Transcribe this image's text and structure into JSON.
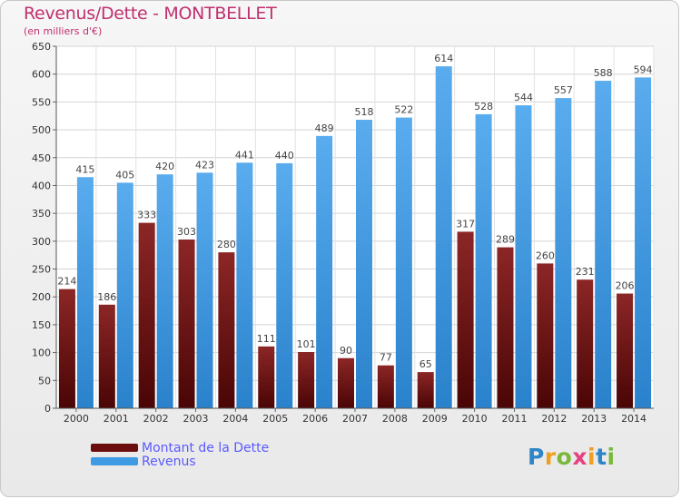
{
  "header": {
    "title": "Revenus/Dette - MONTBELLET",
    "subtitle": "(en milliers d'€)"
  },
  "legend": {
    "items": [
      {
        "label": "Montant de la Dette",
        "color": "#6b0d0d"
      },
      {
        "label": "Revenus",
        "color": "#3f9be3"
      }
    ]
  },
  "logo": {
    "letters": [
      "P",
      "r",
      "o",
      "x",
      "i",
      "t",
      "i"
    ],
    "colors": [
      "#2e86c8",
      "#f0a020",
      "#7ab83c",
      "#e84080",
      "#f0a020",
      "#2e86c8",
      "#7ab83c"
    ]
  },
  "chart_data": {
    "type": "bar",
    "categories": [
      "2000",
      "2001",
      "2002",
      "2003",
      "2004",
      "2005",
      "2006",
      "2007",
      "2008",
      "2009",
      "2010",
      "2011",
      "2012",
      "2013",
      "2014"
    ],
    "series": [
      {
        "name": "Montant de la Dette",
        "values": [
          214,
          186,
          333,
          303,
          280,
          111,
          101,
          90,
          77,
          65,
          317,
          289,
          260,
          231,
          206
        ],
        "color": "#6b0d0d"
      },
      {
        "name": "Revenus",
        "values": [
          415,
          405,
          420,
          423,
          441,
          440,
          489,
          518,
          522,
          614,
          528,
          544,
          557,
          588,
          594
        ],
        "color": "#3f9be3"
      }
    ],
    "ylim": [
      0,
      650
    ],
    "yticks": [
      0,
      50,
      100,
      150,
      200,
      250,
      300,
      350,
      400,
      450,
      500,
      550,
      600,
      650
    ],
    "grid": true
  }
}
